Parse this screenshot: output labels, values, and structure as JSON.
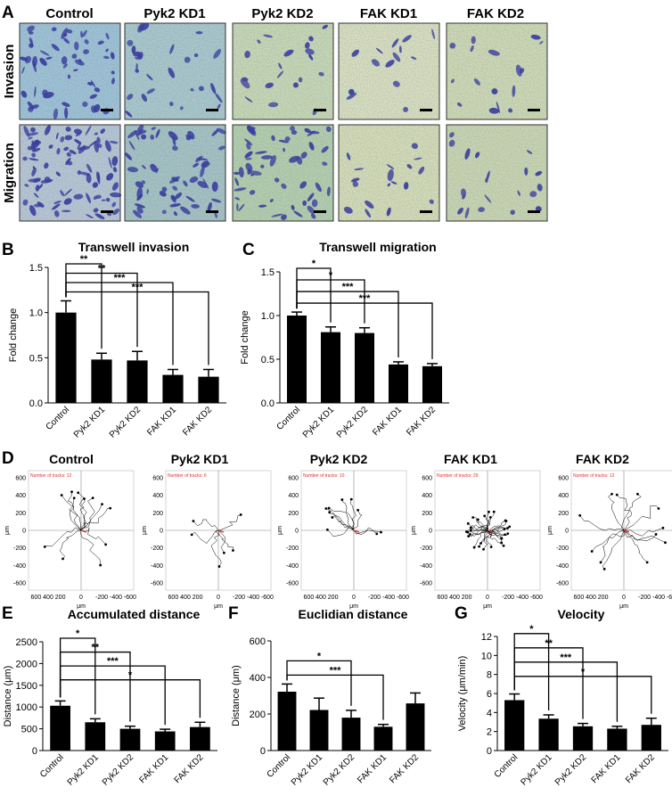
{
  "panel_letters": [
    "A",
    "B",
    "C",
    "D",
    "E",
    "F",
    "G"
  ],
  "panel_a": {
    "columns": [
      "Control",
      "Pyk2 KD1",
      "Pyk2 KD2",
      "FAK KD1",
      "FAK KD2"
    ],
    "rows": [
      "Invasion",
      "Migration"
    ]
  },
  "panel_d": {
    "titles": [
      "Control",
      "Pyk2 KD1",
      "Pyk2 KD2",
      "FAK KD1",
      "FAK KD2"
    ],
    "tracks_labels": [
      "Number of tracks: 12",
      "Number of tracks: 6",
      "Number of tracks: 10",
      "Number of tracks: 29",
      "Number of tracks: 12"
    ],
    "y_ticks": [
      "600",
      "400",
      "200",
      "0",
      "-200",
      "-400",
      "-600"
    ],
    "x_ticks": [
      "600 400 200",
      "0",
      "-200 -400 -600"
    ],
    "axis_label": "μm",
    "colors": {
      "track": "#000000",
      "tracks_label": "#e03030",
      "mean": "#e03030"
    }
  },
  "chart_data": [
    {
      "type": "bar",
      "panel": "B",
      "title": "Transwell invasion",
      "ylabel": "Fold change",
      "xlabel": "",
      "categories": [
        "Control",
        "Pyk2 KD1",
        "Pyk2 KD2",
        "FAK KD1",
        "FAK KD2"
      ],
      "values": [
        1.0,
        0.48,
        0.47,
        0.31,
        0.29
      ],
      "errors": [
        0.13,
        0.07,
        0.1,
        0.06,
        0.08
      ],
      "ylim": [
        0,
        1.5
      ],
      "yticks": [
        "0.0",
        "0.5",
        "1.0",
        "1.5"
      ],
      "significance": [
        {
          "to": 1,
          "label": "**"
        },
        {
          "to": 2,
          "label": "**"
        },
        {
          "to": 3,
          "label": "***"
        },
        {
          "to": 4,
          "label": "***"
        }
      ]
    },
    {
      "type": "bar",
      "panel": "C",
      "title": "Transwell migration",
      "ylabel": "Fold change",
      "xlabel": "",
      "categories": [
        "Control",
        "Pyk2 KD1",
        "Pyk2 KD2",
        "FAK KD1",
        "FAK KD2"
      ],
      "values": [
        1.0,
        0.81,
        0.8,
        0.44,
        0.42
      ],
      "errors": [
        0.04,
        0.06,
        0.06,
        0.03,
        0.03
      ],
      "ylim": [
        0,
        1.5
      ],
      "yticks": [
        "0.0",
        "0.5",
        "1.0",
        "1.5"
      ],
      "significance": [
        {
          "to": 1,
          "label": "*"
        },
        {
          "to": 2,
          "label": "*"
        },
        {
          "to": 3,
          "label": "***"
        },
        {
          "to": 4,
          "label": "***"
        }
      ]
    },
    {
      "type": "bar",
      "panel": "E",
      "title": "Accumulated distance",
      "ylabel": "Distance (μm)",
      "xlabel": "",
      "categories": [
        "Control",
        "Pyk2 KD1",
        "Pyk2 KD2",
        "FAK KD1",
        "FAK KD2"
      ],
      "values": [
        1030,
        650,
        500,
        440,
        540
      ],
      "errors": [
        110,
        80,
        60,
        50,
        110
      ],
      "ylim": [
        0,
        2500
      ],
      "yticks": [
        "0",
        "500",
        "1000",
        "1500",
        "2000",
        "2500"
      ],
      "significance": [
        {
          "to": 1,
          "label": "*"
        },
        {
          "to": 2,
          "label": "**"
        },
        {
          "to": 3,
          "label": "***"
        },
        {
          "to": 4,
          "label": "*"
        }
      ]
    },
    {
      "type": "bar",
      "panel": "F",
      "title": "Euclidian distance",
      "ylabel": "Distance (μm)",
      "xlabel": "",
      "categories": [
        "Control",
        "Pyk2 KD1",
        "Pyk2 KD2",
        "FAK KD1",
        "FAK KD2"
      ],
      "values": [
        322,
        222,
        180,
        130,
        258
      ],
      "errors": [
        42,
        65,
        40,
        13,
        57
      ],
      "ylim": [
        0,
        600
      ],
      "yticks": [
        "0",
        "200",
        "400",
        "600"
      ],
      "significance": [
        {
          "to": 2,
          "label": "*"
        },
        {
          "to": 3,
          "label": "***"
        }
      ]
    },
    {
      "type": "bar",
      "panel": "G",
      "title": "Velocity",
      "ylabel": "Velocity (μm/min)",
      "xlabel": "",
      "categories": [
        "Control",
        "Pyk2 KD1",
        "Pyk2 KD2",
        "FAK KD1",
        "FAK KD2"
      ],
      "values": [
        5.3,
        3.35,
        2.55,
        2.3,
        2.7
      ],
      "errors": [
        0.65,
        0.4,
        0.3,
        0.25,
        0.7
      ],
      "ylim": [
        0,
        12
      ],
      "yticks": [
        "0",
        "2",
        "4",
        "6",
        "8",
        "10",
        "12"
      ],
      "significance": [
        {
          "to": 1,
          "label": "*"
        },
        {
          "to": 2,
          "label": "**"
        },
        {
          "to": 3,
          "label": "***"
        },
        {
          "to": 4,
          "label": "*"
        }
      ]
    }
  ]
}
